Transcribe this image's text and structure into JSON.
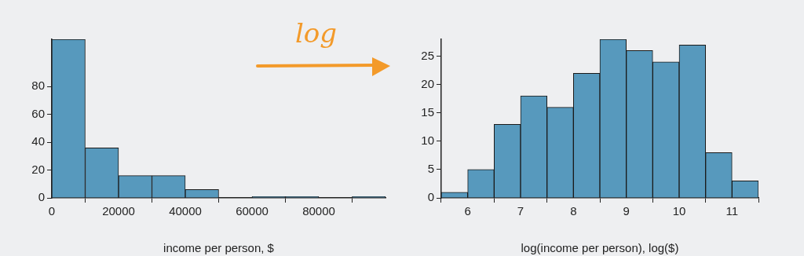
{
  "chart_data": [
    {
      "type": "histogram",
      "xlabel": "income per person, $",
      "bins": [
        0,
        10000,
        20000,
        30000,
        40000,
        50000,
        60000,
        70000,
        80000,
        90000,
        100000
      ],
      "values": [
        114,
        36,
        16,
        16,
        6,
        0,
        1,
        1,
        0,
        1
      ],
      "color": "#5799bd",
      "xlim": [
        0,
        100000
      ],
      "xticks": [
        0,
        20000,
        40000,
        60000,
        80000
      ],
      "ylim": [
        0,
        114
      ],
      "yticks": [
        0,
        20,
        40,
        60,
        80
      ],
      "grid": false,
      "legend": false
    },
    {
      "type": "histogram",
      "xlabel": "log(income per person), log($)",
      "bins": [
        5.5,
        6,
        6.5,
        7,
        7.5,
        8,
        8.5,
        9,
        9.5,
        10,
        10.5,
        11,
        11.5
      ],
      "values": [
        1,
        5,
        13,
        18,
        16,
        22,
        28,
        26,
        24,
        27,
        8,
        3
      ],
      "color": "#5799bd",
      "xlim": [
        5.5,
        11.5
      ],
      "xticks": [
        6,
        7,
        8,
        9,
        10,
        11
      ],
      "ylim": [
        0,
        28
      ],
      "yticks": [
        0,
        5,
        10,
        15,
        20,
        25
      ],
      "grid": false,
      "legend": false,
      "annotations": [
        "log"
      ]
    }
  ]
}
